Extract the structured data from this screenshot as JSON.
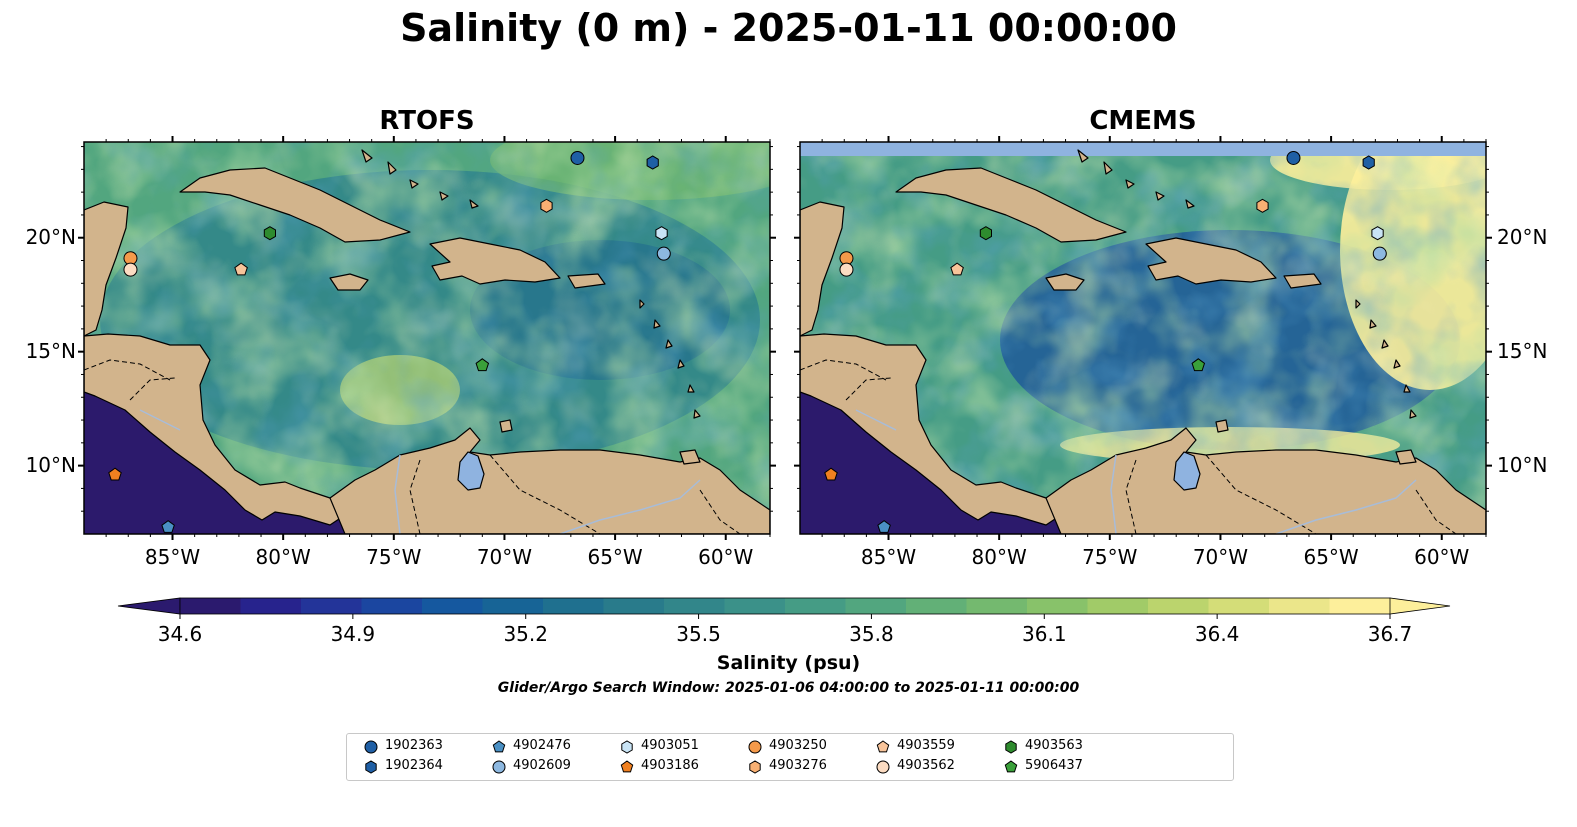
{
  "title": "Salinity (0 m) - 2025-01-11 00:00:00",
  "panels": [
    {
      "title": "RTOFS"
    },
    {
      "title": "CMEMS"
    }
  ],
  "map": {
    "lon_range": [
      -89,
      -58
    ],
    "lat_range": [
      7,
      24.2
    ],
    "x_ticks": [
      "85°W",
      "80°W",
      "75°W",
      "70°W",
      "65°W",
      "60°W"
    ],
    "y_ticks": [
      "20°N",
      "15°N",
      "10°N"
    ],
    "land_color": "#d2b48c",
    "pacific_color": "#2c1a6c",
    "lake_color": "#8fb3e0"
  },
  "colorbar": {
    "label": "Salinity (psu)",
    "ticks": [
      "34.6",
      "34.9",
      "35.2",
      "35.5",
      "35.8",
      "36.1",
      "36.4",
      "36.7"
    ],
    "min": 34.6,
    "max": 36.7,
    "colors": [
      "#2b1a6e",
      "#27238d",
      "#233499",
      "#1b46a0",
      "#15589f",
      "#176496",
      "#1f708f",
      "#297b8b",
      "#32868a",
      "#3b9189",
      "#459c85",
      "#52a67f",
      "#62b077",
      "#74b96f",
      "#88c26a",
      "#a1cb68",
      "#bbd46d",
      "#d4dd78",
      "#ebe68a",
      "#fdef9b"
    ]
  },
  "search_window": "Glider/Argo Search Window: 2025-01-06 04:00:00 to 2025-01-11 00:00:00",
  "legend": [
    {
      "label": "1902363",
      "shape": "circle",
      "color": "#1f5fa5"
    },
    {
      "label": "1902364",
      "shape": "hexagon",
      "color": "#1f5fa5"
    },
    {
      "label": "4902476",
      "shape": "pentagon",
      "color": "#4a90c4"
    },
    {
      "label": "4902609",
      "shape": "circle",
      "color": "#8db8e0"
    },
    {
      "label": "4903051",
      "shape": "hexagon",
      "color": "#c9e4f5"
    },
    {
      "label": "4903186",
      "shape": "pentagon",
      "color": "#f08020"
    },
    {
      "label": "4903250",
      "shape": "circle",
      "color": "#f59a4a"
    },
    {
      "label": "4903276",
      "shape": "hexagon",
      "color": "#f8b073"
    },
    {
      "label": "4903559",
      "shape": "pentagon",
      "color": "#f8c49a"
    },
    {
      "label": "4903562",
      "shape": "circle",
      "color": "#fcdcc2"
    },
    {
      "label": "4903563",
      "shape": "hexagon",
      "color": "#2e8b2e"
    },
    {
      "label": "5906437",
      "shape": "pentagon",
      "color": "#3aa03a"
    }
  ],
  "platform_positions": [
    {
      "id": "1902363",
      "lon": -66.7,
      "lat": 23.5
    },
    {
      "id": "1902364",
      "lon": -63.3,
      "lat": 23.3
    },
    {
      "id": "4902476",
      "lon": -85.2,
      "lat": 7.3
    },
    {
      "id": "4902609",
      "lon": -62.8,
      "lat": 19.3
    },
    {
      "id": "4903051",
      "lon": -62.9,
      "lat": 20.2
    },
    {
      "id": "4903186",
      "lon": -87.6,
      "lat": 9.6
    },
    {
      "id": "4903250",
      "lon": -86.9,
      "lat": 19.1
    },
    {
      "id": "4903276",
      "lon": -68.1,
      "lat": 21.4
    },
    {
      "id": "4903559",
      "lon": -81.9,
      "lat": 18.6
    },
    {
      "id": "4903562",
      "lon": -86.9,
      "lat": 18.6
    },
    {
      "id": "4903563",
      "lon": -80.6,
      "lat": 20.2
    },
    {
      "id": "5906437",
      "lon": -71.0,
      "lat": 14.4
    }
  ]
}
